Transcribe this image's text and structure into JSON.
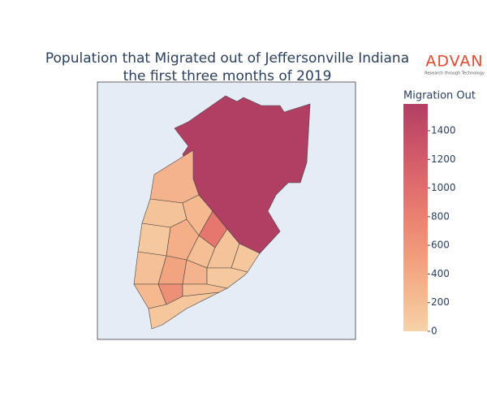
{
  "chart_data": {
    "type": "choropleth",
    "title": [
      "Population that Migrated out of Jeffersonville Indiana",
      "the first three months of 2019"
    ],
    "logo": {
      "name": "ADVAN",
      "tagline": "Research through Technology"
    },
    "colorbar_title": "Migration Out",
    "values": [
      1587,
      300,
      150,
      250,
      900,
      100,
      350,
      200,
      150,
      120,
      180,
      450,
      300,
      100,
      250,
      650,
      200,
      120
    ],
    "colorscale": [
      [
        0,
        "#f6d2a9"
      ],
      [
        0.1667,
        "#f5b78e"
      ],
      [
        0.3333,
        "#f19c7c"
      ],
      [
        0.5,
        "#ea8171"
      ],
      [
        0.6667,
        "#dd686c"
      ],
      [
        0.8333,
        "#ca5268"
      ],
      [
        1,
        "#b13f64"
      ]
    ],
    "clim": [
      0,
      1587
    ],
    "cticks": [
      0,
      200,
      400,
      600,
      800,
      1000,
      1200,
      1400
    ]
  }
}
